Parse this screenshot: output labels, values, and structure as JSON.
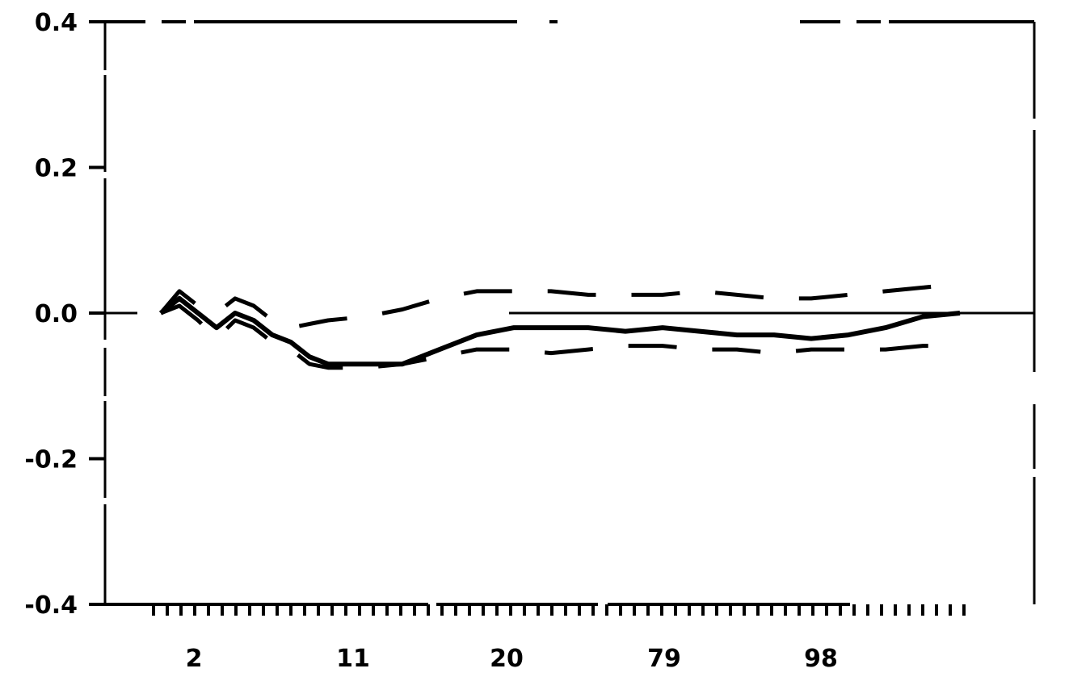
{
  "chart_data": {
    "type": "line",
    "title": "",
    "xlabel": "",
    "ylabel": "",
    "x_tick_labels": [
      "2",
      "11",
      "20",
      "79",
      "98"
    ],
    "y_tick_labels": [
      "0.4",
      "0.2",
      "0.0",
      "-0.2",
      "-0.4"
    ],
    "y_ticks": [
      0.4,
      0.2,
      0.0,
      -0.2,
      -0.4
    ],
    "ylim": [
      -0.4,
      0.4
    ],
    "xlim": [
      0,
      50
    ],
    "legend": "none",
    "grid": false,
    "zero_line": true,
    "series": [
      {
        "style": "solid",
        "x": [
          3,
          4,
          5,
          6,
          7,
          8,
          9,
          10,
          11,
          12,
          14,
          16,
          18,
          20,
          22,
          24,
          26,
          28,
          30,
          32,
          34,
          36,
          38,
          40,
          42,
          44,
          46
        ],
        "y": [
          0.0,
          0.02,
          0.0,
          -0.02,
          0.0,
          -0.01,
          -0.03,
          -0.04,
          -0.06,
          -0.07,
          -0.07,
          -0.07,
          -0.05,
          -0.03,
          -0.02,
          -0.02,
          -0.02,
          -0.025,
          -0.02,
          -0.025,
          -0.03,
          -0.03,
          -0.035,
          -0.03,
          -0.02,
          -0.005,
          0.0
        ]
      },
      {
        "style": "dashed",
        "x": [
          3,
          4,
          5,
          6,
          7,
          8,
          9,
          10,
          11,
          12,
          14,
          16,
          18,
          20,
          22,
          24,
          26,
          28,
          30,
          32,
          34,
          36,
          38,
          40,
          42,
          44,
          46
        ],
        "y": [
          0.0,
          0.03,
          0.01,
          0.0,
          0.02,
          0.01,
          -0.01,
          -0.02,
          -0.015,
          -0.01,
          -0.005,
          0.005,
          0.02,
          0.03,
          0.03,
          0.03,
          0.025,
          0.025,
          0.025,
          0.03,
          0.025,
          0.02,
          0.02,
          0.025,
          0.03,
          0.035,
          0.04
        ]
      },
      {
        "style": "dashed",
        "x": [
          3,
          4,
          5,
          6,
          7,
          8,
          9,
          10,
          11,
          12,
          14,
          16,
          18,
          20,
          22,
          24,
          26,
          28,
          30,
          32,
          34,
          36,
          38,
          40,
          42,
          44,
          46
        ],
        "y": [
          0.0,
          0.01,
          -0.01,
          -0.035,
          -0.01,
          -0.02,
          -0.04,
          -0.05,
          -0.07,
          -0.075,
          -0.075,
          -0.07,
          -0.06,
          -0.05,
          -0.05,
          -0.055,
          -0.05,
          -0.045,
          -0.045,
          -0.05,
          -0.05,
          -0.055,
          -0.05,
          -0.05,
          -0.05,
          -0.045,
          -0.045
        ]
      }
    ]
  }
}
